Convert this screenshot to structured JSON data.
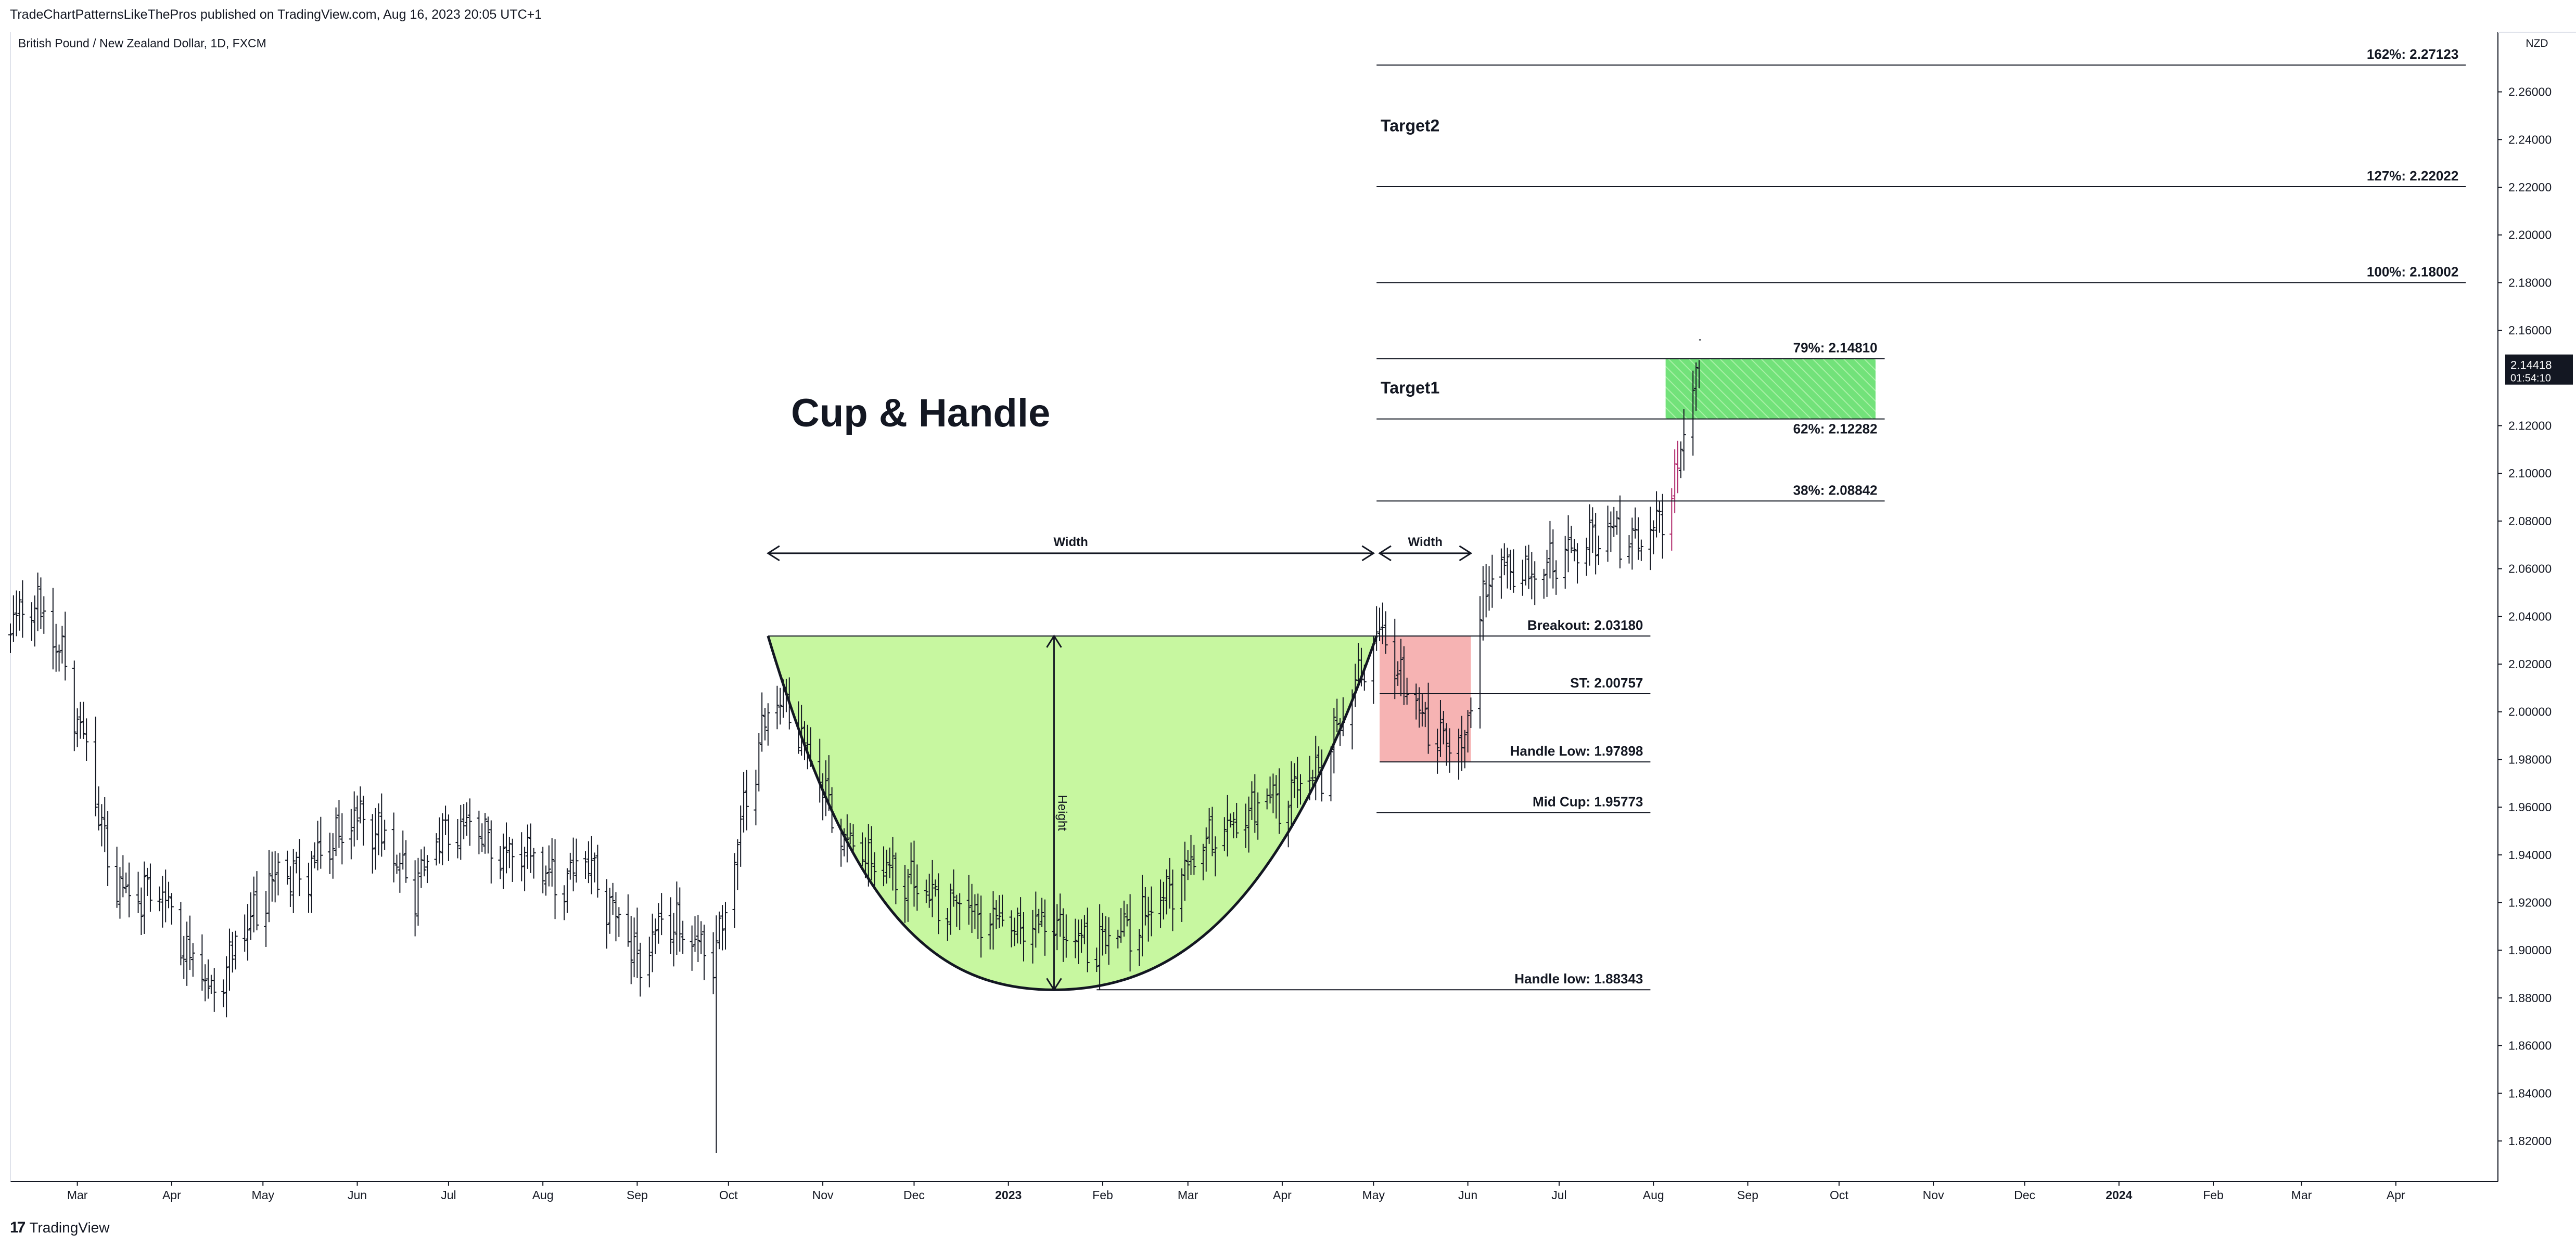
{
  "header": {
    "published": "TradeChartPatternsLikeThePros published on TradingView.com, Aug 16, 2023 20:05 UTC+1",
    "symbol": "British Pound / New Zealand Dollar, 1D, FXCM"
  },
  "footer": {
    "logo_label": "TradingView"
  },
  "chart_data": {
    "type": "ohlc-bar",
    "currency_label": "NZD",
    "y_range": [
      1.803,
      2.285
    ],
    "y_ticks": [
      "2.26000",
      "2.24000",
      "2.22000",
      "2.20000",
      "2.18000",
      "2.16000",
      "2.12000",
      "2.10000",
      "2.08000",
      "2.06000",
      "2.04000",
      "2.02000",
      "2.00000",
      "1.98000",
      "1.96000",
      "1.94000",
      "1.92000",
      "1.90000",
      "1.88000",
      "1.86000",
      "1.84000",
      "1.82000"
    ],
    "x_start": "2022-02-07",
    "x_end": "2024-04-26",
    "x_ticks": [
      {
        "label": "Mar",
        "date": "2022-03-01"
      },
      {
        "label": "Apr",
        "date": "2022-04-01"
      },
      {
        "label": "May",
        "date": "2022-05-01"
      },
      {
        "label": "Jun",
        "date": "2022-06-01"
      },
      {
        "label": "Jul",
        "date": "2022-07-01"
      },
      {
        "label": "Aug",
        "date": "2022-08-01"
      },
      {
        "label": "Sep",
        "date": "2022-09-01"
      },
      {
        "label": "Oct",
        "date": "2022-10-01"
      },
      {
        "label": "Nov",
        "date": "2022-11-01"
      },
      {
        "label": "Dec",
        "date": "2022-12-01"
      },
      {
        "label": "2023",
        "date": "2023-01-01",
        "bold": true
      },
      {
        "label": "Feb",
        "date": "2023-02-01"
      },
      {
        "label": "Mar",
        "date": "2023-03-01"
      },
      {
        "label": "Apr",
        "date": "2023-04-01"
      },
      {
        "label": "May",
        "date": "2023-05-01"
      },
      {
        "label": "Jun",
        "date": "2023-06-01"
      },
      {
        "label": "Jul",
        "date": "2023-07-01"
      },
      {
        "label": "Aug",
        "date": "2023-08-01"
      },
      {
        "label": "Sep",
        "date": "2023-09-01"
      },
      {
        "label": "Oct",
        "date": "2023-10-01"
      },
      {
        "label": "Nov",
        "date": "2023-11-01"
      },
      {
        "label": "Dec",
        "date": "2023-12-01"
      },
      {
        "label": "2024",
        "date": "2024-01-01",
        "bold": true
      },
      {
        "label": "Feb",
        "date": "2024-02-01"
      },
      {
        "label": "Mar",
        "date": "2024-03-01"
      },
      {
        "label": "Apr",
        "date": "2024-04-01"
      }
    ],
    "last_price": {
      "value": 2.14418,
      "label": "2.14418",
      "countdown": "01:54:10"
    },
    "price_path": [
      [
        "2022-02-07",
        2.035
      ],
      [
        "2022-02-15",
        2.045
      ],
      [
        "2022-02-25",
        2.02
      ],
      [
        "2022-03-05",
        1.975
      ],
      [
        "2022-03-12",
        1.93
      ],
      [
        "2022-03-18",
        1.918
      ],
      [
        "2022-03-28",
        1.925
      ],
      [
        "2022-04-05",
        1.9
      ],
      [
        "2022-04-14",
        1.88
      ],
      [
        "2022-04-25",
        1.905
      ],
      [
        "2022-05-05",
        1.93
      ],
      [
        "2022-05-15",
        1.93
      ],
      [
        "2022-05-25",
        1.945
      ],
      [
        "2022-06-01",
        1.955
      ],
      [
        "2022-06-10",
        1.945
      ],
      [
        "2022-06-20",
        1.925
      ],
      [
        "2022-06-28",
        1.945
      ],
      [
        "2022-07-08",
        1.95
      ],
      [
        "2022-07-18",
        1.938
      ],
      [
        "2022-07-28",
        1.94
      ],
      [
        "2022-08-05",
        1.925
      ],
      [
        "2022-08-15",
        1.935
      ],
      [
        "2022-08-24",
        1.915
      ],
      [
        "2022-09-01",
        1.893
      ],
      [
        "2022-09-10",
        1.91
      ],
      [
        "2022-09-18",
        1.905
      ],
      [
        "2022-09-26",
        1.895
      ],
      [
        "2022-10-01",
        1.92
      ],
      [
        "2022-10-05",
        1.95
      ],
      [
        "2022-10-12",
        1.99
      ],
      [
        "2022-10-18",
        2.005
      ],
      [
        "2022-10-24",
        1.99
      ],
      [
        "2022-10-31",
        1.97
      ],
      [
        "2022-11-08",
        1.945
      ],
      [
        "2022-11-18",
        1.935
      ],
      [
        "2022-11-28",
        1.928
      ],
      [
        "2022-12-08",
        1.92
      ],
      [
        "2022-12-18",
        1.915
      ],
      [
        "2022-12-28",
        1.91
      ],
      [
        "2023-01-05",
        1.905
      ],
      [
        "2023-01-12",
        1.91
      ],
      [
        "2023-01-20",
        1.905
      ],
      [
        "2023-01-28",
        1.9
      ],
      [
        "2023-02-05",
        1.903
      ],
      [
        "2023-02-14",
        1.912
      ],
      [
        "2023-02-24",
        1.925
      ],
      [
        "2023-03-05",
        1.94
      ],
      [
        "2023-03-15",
        1.95
      ],
      [
        "2023-03-25",
        1.96
      ],
      [
        "2023-04-05",
        1.965
      ],
      [
        "2023-04-14",
        1.975
      ],
      [
        "2023-04-22",
        2.0
      ],
      [
        "2023-04-30",
        2.025
      ],
      [
        "2023-05-04",
        2.033
      ],
      [
        "2023-05-10",
        2.01
      ],
      [
        "2023-05-18",
        1.995
      ],
      [
        "2023-05-26",
        1.985
      ],
      [
        "2023-05-31",
        1.985
      ],
      [
        "2023-06-05",
        2.04
      ],
      [
        "2023-06-10",
        2.06
      ],
      [
        "2023-06-20",
        2.055
      ],
      [
        "2023-06-30",
        2.06
      ],
      [
        "2023-07-10",
        2.07
      ],
      [
        "2023-07-20",
        2.075
      ],
      [
        "2023-07-28",
        2.068
      ],
      [
        "2023-08-03",
        2.08
      ],
      [
        "2023-08-08",
        2.095
      ],
      [
        "2023-08-11",
        2.12
      ],
      [
        "2023-08-14",
        2.135
      ],
      [
        "2023-08-16",
        2.14418
      ]
    ],
    "cup_curve": [
      [
        "2022-10-14",
        2.0318
      ],
      [
        "2022-11-15",
        1.96
      ],
      [
        "2022-12-15",
        1.915
      ],
      [
        "2023-01-16",
        1.8834
      ],
      [
        "2023-02-15",
        1.895
      ],
      [
        "2023-03-15",
        1.925
      ],
      [
        "2023-04-15",
        1.975
      ],
      [
        "2023-05-02",
        2.0318
      ]
    ],
    "cup_label": "Cup & Handle",
    "handle_box": {
      "x0": "2023-05-03",
      "x1": "2023-06-02",
      "y0": 1.979,
      "y1": 2.0318
    },
    "target_box": {
      "x0": "2023-08-05",
      "x1": "2023-10-13",
      "y0": 2.12282,
      "y1": 2.1481
    },
    "measure_width_cup": {
      "x0": "2022-10-14",
      "x1": "2023-05-01",
      "y": 2.0665,
      "label": "Width"
    },
    "measure_width_handle": {
      "x0": "2023-05-03",
      "x1": "2023-06-02",
      "y": 2.0665,
      "label": "Width"
    },
    "measure_height": {
      "x": "2023-01-16",
      "y0": 1.8834,
      "y1": 2.0318,
      "label": "Height"
    },
    "levels": [
      {
        "label": "Breakout: 2.03180",
        "value": 2.0318,
        "x0": "2022-10-14",
        "x1": "2023-07-31"
      },
      {
        "label": "ST: 2.00757",
        "value": 2.00757,
        "x0": "2023-05-03",
        "x1": "2023-07-31"
      },
      {
        "label": "Handle Low: 1.97898",
        "value": 1.97898,
        "x0": "2023-05-03",
        "x1": "2023-07-31"
      },
      {
        "label": "Mid Cup: 1.95773",
        "value": 1.95773,
        "x0": "2023-05-02",
        "x1": "2023-07-31"
      },
      {
        "label": "Handle low: 1.88343",
        "value": 1.88343,
        "x0": "2023-01-30",
        "x1": "2023-07-31"
      },
      {
        "label": "38%: 2.08842",
        "value": 2.08842,
        "x0": "2023-05-02",
        "x1": "2023-10-16"
      },
      {
        "label": "62%: 2.12282",
        "value": 2.12282,
        "x0": "2023-05-02",
        "x1": "2023-10-16"
      },
      {
        "label": "79%: 2.14810",
        "value": 2.1481,
        "x0": "2023-05-02",
        "x1": "2023-10-16"
      },
      {
        "label": "100%: 2.18002",
        "value": 2.18002,
        "x0": "2023-05-02",
        "x1": "2024-04-24"
      },
      {
        "label": "127%: 2.22022",
        "value": 2.22022,
        "x0": "2023-05-02",
        "x1": "2024-04-24"
      },
      {
        "label": "162%: 2.27123",
        "value": 2.27123,
        "x0": "2023-05-02",
        "x1": "2024-04-24"
      }
    ],
    "annotations": [
      {
        "label": "Target1",
        "x": "2023-05-03",
        "y": 2.1335
      },
      {
        "label": "Target2",
        "x": "2023-05-03",
        "y": 2.2435
      }
    ]
  }
}
